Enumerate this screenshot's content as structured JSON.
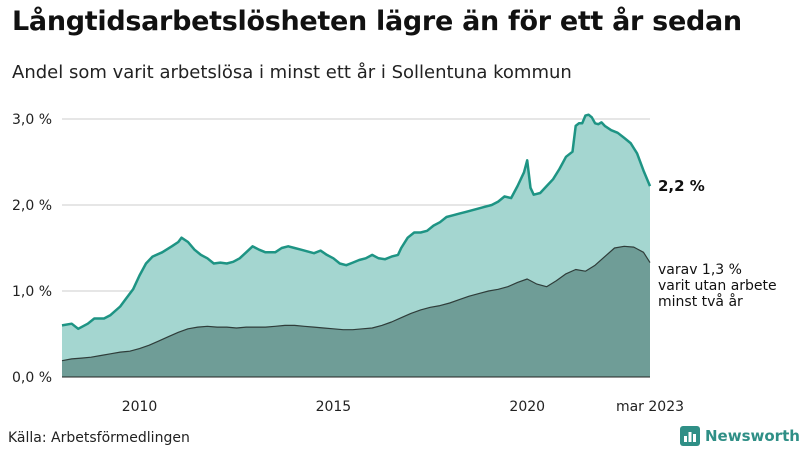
{
  "header": {
    "title": "Långtidsarbetslösheten lägre än för ett år sedan",
    "subtitle": "Andel som varit arbetslösa i minst ett år i Sollentuna kommun"
  },
  "footer": {
    "source": "Källa: Arbetsförmedlingen",
    "brand": "Newsworthy"
  },
  "colors": {
    "total_line": "#1e9484",
    "total_fill": "#a4d6d0",
    "sub_fill": "#6f9d97",
    "sub_line": "#2f3d3a",
    "grid": "#cccccc"
  },
  "chart_data": {
    "type": "area",
    "x_unit": "months since 2008-01",
    "xlim": [
      0,
      182
    ],
    "ylim": [
      0,
      3.0
    ],
    "y_ticks": [
      {
        "value": 0,
        "label": "0,0 %"
      },
      {
        "value": 1,
        "label": "1,0 %"
      },
      {
        "value": 2,
        "label": "2,0 %"
      },
      {
        "value": 3,
        "label": "3,0 %"
      }
    ],
    "x_ticks": [
      {
        "value": 24,
        "label": "2010"
      },
      {
        "value": 84,
        "label": "2015"
      },
      {
        "value": 144,
        "label": "2020"
      },
      {
        "value": 182,
        "label": "mar 2023"
      }
    ],
    "series": [
      {
        "name": "Minst ett år",
        "end_label": "2,2 %",
        "points": [
          [
            0,
            0.6
          ],
          [
            3,
            0.62
          ],
          [
            5,
            0.56
          ],
          [
            8,
            0.62
          ],
          [
            10,
            0.68
          ],
          [
            13,
            0.68
          ],
          [
            15,
            0.72
          ],
          [
            18,
            0.82
          ],
          [
            20,
            0.92
          ],
          [
            22,
            1.02
          ],
          [
            24,
            1.18
          ],
          [
            26,
            1.32
          ],
          [
            28,
            1.4
          ],
          [
            31,
            1.45
          ],
          [
            34,
            1.52
          ],
          [
            36,
            1.57
          ],
          [
            37,
            1.62
          ],
          [
            39,
            1.57
          ],
          [
            41,
            1.48
          ],
          [
            43,
            1.42
          ],
          [
            45,
            1.38
          ],
          [
            47,
            1.32
          ],
          [
            49,
            1.33
          ],
          [
            51,
            1.32
          ],
          [
            53,
            1.34
          ],
          [
            55,
            1.38
          ],
          [
            57,
            1.45
          ],
          [
            59,
            1.52
          ],
          [
            61,
            1.48
          ],
          [
            63,
            1.45
          ],
          [
            66,
            1.45
          ],
          [
            68,
            1.5
          ],
          [
            70,
            1.52
          ],
          [
            72,
            1.5
          ],
          [
            74,
            1.48
          ],
          [
            76,
            1.46
          ],
          [
            78,
            1.44
          ],
          [
            80,
            1.47
          ],
          [
            82,
            1.42
          ],
          [
            84,
            1.38
          ],
          [
            86,
            1.32
          ],
          [
            88,
            1.3
          ],
          [
            90,
            1.33
          ],
          [
            92,
            1.36
          ],
          [
            94,
            1.38
          ],
          [
            96,
            1.42
          ],
          [
            98,
            1.38
          ],
          [
            100,
            1.37
          ],
          [
            102,
            1.4
          ],
          [
            104,
            1.42
          ],
          [
            105,
            1.5
          ],
          [
            107,
            1.62
          ],
          [
            109,
            1.68
          ],
          [
            111,
            1.68
          ],
          [
            113,
            1.7
          ],
          [
            115,
            1.76
          ],
          [
            117,
            1.8
          ],
          [
            119,
            1.86
          ],
          [
            121,
            1.88
          ],
          [
            123,
            1.9
          ],
          [
            125,
            1.92
          ],
          [
            127,
            1.94
          ],
          [
            129,
            1.96
          ],
          [
            131,
            1.98
          ],
          [
            133,
            2.0
          ],
          [
            135,
            2.04
          ],
          [
            137,
            2.1
          ],
          [
            139,
            2.08
          ],
          [
            141,
            2.22
          ],
          [
            143,
            2.38
          ],
          [
            144,
            2.52
          ],
          [
            145,
            2.2
          ],
          [
            146,
            2.12
          ],
          [
            148,
            2.14
          ],
          [
            150,
            2.22
          ],
          [
            152,
            2.3
          ],
          [
            154,
            2.42
          ],
          [
            156,
            2.56
          ],
          [
            158,
            2.62
          ],
          [
            159,
            2.92
          ],
          [
            160,
            2.95
          ],
          [
            161,
            2.95
          ],
          [
            162,
            3.04
          ],
          [
            163,
            3.05
          ],
          [
            164,
            3.02
          ],
          [
            165,
            2.95
          ],
          [
            166,
            2.94
          ],
          [
            167,
            2.96
          ],
          [
            168,
            2.92
          ],
          [
            170,
            2.87
          ],
          [
            172,
            2.84
          ],
          [
            174,
            2.78
          ],
          [
            176,
            2.72
          ],
          [
            178,
            2.6
          ],
          [
            180,
            2.4
          ],
          [
            182,
            2.22
          ]
        ]
      },
      {
        "name": "varav minst två år",
        "end_label_lines": [
          "varav 1,3 %",
          "varit utan arbete",
          "minst två år"
        ],
        "points": [
          [
            0,
            0.19
          ],
          [
            3,
            0.21
          ],
          [
            6,
            0.22
          ],
          [
            9,
            0.23
          ],
          [
            12,
            0.25
          ],
          [
            15,
            0.27
          ],
          [
            18,
            0.29
          ],
          [
            21,
            0.3
          ],
          [
            24,
            0.33
          ],
          [
            27,
            0.37
          ],
          [
            30,
            0.42
          ],
          [
            33,
            0.47
          ],
          [
            36,
            0.52
          ],
          [
            39,
            0.56
          ],
          [
            42,
            0.58
          ],
          [
            45,
            0.59
          ],
          [
            48,
            0.58
          ],
          [
            51,
            0.58
          ],
          [
            54,
            0.57
          ],
          [
            57,
            0.58
          ],
          [
            60,
            0.58
          ],
          [
            63,
            0.58
          ],
          [
            66,
            0.59
          ],
          [
            69,
            0.6
          ],
          [
            72,
            0.6
          ],
          [
            75,
            0.59
          ],
          [
            78,
            0.58
          ],
          [
            81,
            0.57
          ],
          [
            84,
            0.56
          ],
          [
            87,
            0.55
          ],
          [
            90,
            0.55
          ],
          [
            93,
            0.56
          ],
          [
            96,
            0.57
          ],
          [
            99,
            0.6
          ],
          [
            102,
            0.64
          ],
          [
            105,
            0.69
          ],
          [
            108,
            0.74
          ],
          [
            111,
            0.78
          ],
          [
            114,
            0.81
          ],
          [
            117,
            0.83
          ],
          [
            120,
            0.86
          ],
          [
            123,
            0.9
          ],
          [
            126,
            0.94
          ],
          [
            129,
            0.97
          ],
          [
            132,
            1.0
          ],
          [
            135,
            1.02
          ],
          [
            138,
            1.05
          ],
          [
            141,
            1.1
          ],
          [
            144,
            1.14
          ],
          [
            147,
            1.08
          ],
          [
            150,
            1.05
          ],
          [
            153,
            1.12
          ],
          [
            156,
            1.2
          ],
          [
            159,
            1.25
          ],
          [
            162,
            1.23
          ],
          [
            165,
            1.3
          ],
          [
            168,
            1.4
          ],
          [
            171,
            1.5
          ],
          [
            174,
            1.52
          ],
          [
            177,
            1.51
          ],
          [
            180,
            1.45
          ],
          [
            182,
            1.33
          ]
        ]
      }
    ]
  }
}
